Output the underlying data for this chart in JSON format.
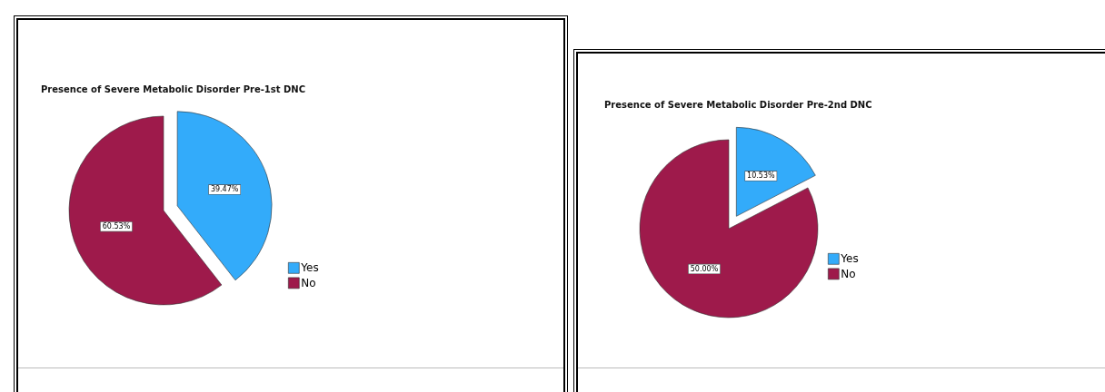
{
  "chart_data": [
    {
      "type": "pie",
      "title": "Presence of Severe Metabolic Disorder Pre-1st DNC",
      "categories": [
        "Yes",
        "No"
      ],
      "values": [
        39.47,
        60.53
      ],
      "value_labels": [
        "39.47%",
        "60.53%"
      ],
      "colors": [
        "#33abfa",
        "#9e1a4b"
      ],
      "legend": "right"
    },
    {
      "type": "pie",
      "title": "Presence of Severe Metabolic Disorder Pre-2nd DNC",
      "categories": [
        "Yes",
        "No"
      ],
      "values": [
        10.53,
        50.0
      ],
      "value_labels": [
        "10.53%",
        "50.00%"
      ],
      "colors": [
        "#33abfa",
        "#9e1a4b"
      ],
      "legend": "right"
    }
  ]
}
